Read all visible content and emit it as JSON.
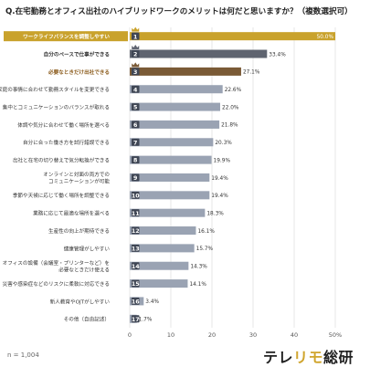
{
  "header": {
    "title": "Q.在宅勤務とオフィス出社のハイブリッドワークのメリットは何だと思いますか？（複数選択可）"
  },
  "footer": {
    "note": "n = 1,004",
    "brand_part1": "テレ",
    "brand_accent": "リモ",
    "brand_part2": "総研"
  },
  "chart_data": {
    "type": "bar",
    "orientation": "horizontal",
    "xlim": [
      0,
      50
    ],
    "xticks": [
      "0",
      "10",
      "20",
      "30",
      "40",
      "50%"
    ],
    "grid": true,
    "categories": [
      [
        "ワークライフバランスを調整しやすい"
      ],
      [
        "自分のペースで仕事ができる"
      ],
      [
        "必要なときだけ出社できる"
      ],
      [
        "家庭の事情に合わせて勤務スタイルを変更できる"
      ],
      [
        "集中とコミュニケーションのバランスが取れる"
      ],
      [
        "体調や気分に合わせて働く場所を選べる"
      ],
      [
        "自分に合った働き方を試行錯誤できる"
      ],
      [
        "出社と在宅の切り替えで気分転換ができる"
      ],
      [
        "オンラインと対面の両方での",
        "コミュニケーションが可能"
      ],
      [
        "季節や天候に応じて働く場所を調整できる"
      ],
      [
        "業務に応じて最適な場所を選べる"
      ],
      [
        "生産性の向上が期待できる"
      ],
      [
        "健康管理がしやすい"
      ],
      [
        "オフィスの設備（会議室・プリンターなど）を",
        "必要なときだけ使える"
      ],
      [
        "災害や感染症などのリスクに柔軟に対応できる"
      ],
      [
        "新人教育やOJTがしやすい"
      ],
      [
        "その他（自由記述）"
      ]
    ],
    "ranks": [
      "1",
      "2",
      "3",
      "4",
      "5",
      "6",
      "7",
      "8",
      "9",
      "10",
      "11",
      "12",
      "13",
      "14",
      "15",
      "16",
      "17"
    ],
    "values": [
      50.0,
      33.4,
      27.1,
      22.6,
      22.0,
      21.8,
      20.3,
      19.9,
      19.4,
      19.4,
      18.3,
      16.1,
      15.7,
      14.3,
      14.1,
      3.4,
      1.7
    ],
    "value_labels": [
      "50.0%",
      "33.4%",
      "27.1%",
      "22.6%",
      "22.0%",
      "21.8%",
      "20.3%",
      "19.9%",
      "19.4%",
      "19.4%",
      "18.3%",
      "16.1%",
      "15.7%",
      "14.3%",
      "14.1%",
      "3.4%",
      "1.7%"
    ],
    "crowns": [
      "gold",
      "silver",
      "bronze"
    ],
    "colors": {
      "gold": "#c9a22c",
      "silver": "#5f6470",
      "bronze": "#7a5a36",
      "other": "#9aa3b3",
      "grid": "#dddddd",
      "highlight_text": "#b8860b"
    }
  }
}
